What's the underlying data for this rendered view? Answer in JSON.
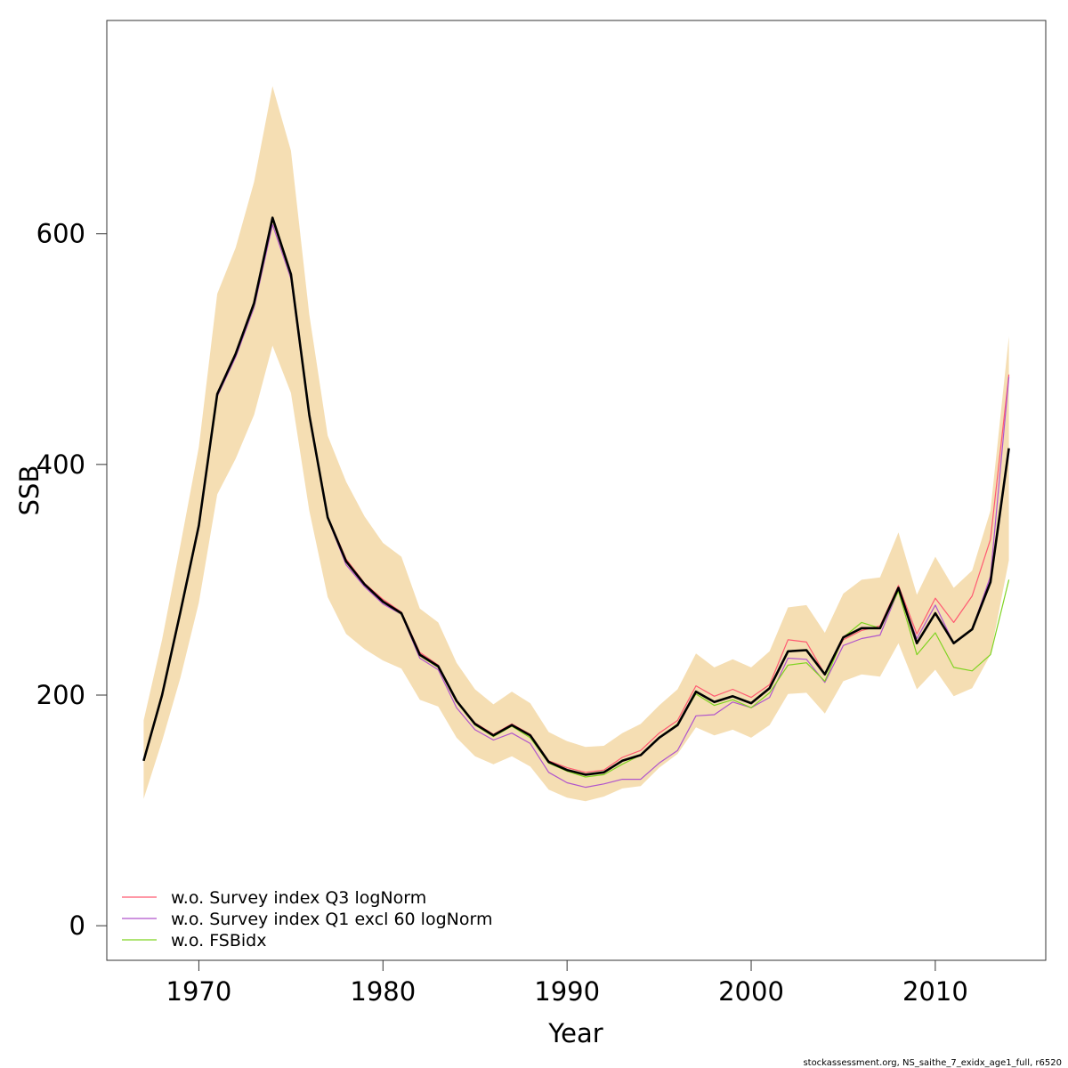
{
  "chart_data": {
    "type": "line",
    "title": "",
    "xlabel": "Year",
    "ylabel": "SSB",
    "xlim": [
      1965,
      2016
    ],
    "ylim": [
      -30,
      785
    ],
    "x_ticks": [
      1970,
      1980,
      1990,
      2000,
      2010
    ],
    "y_ticks": [
      0,
      200,
      400,
      600
    ],
    "grid": false,
    "legend_position": "bottom-left",
    "x": [
      1967,
      1968,
      1969,
      1970,
      1971,
      1972,
      1973,
      1974,
      1975,
      1976,
      1977,
      1978,
      1979,
      1980,
      1981,
      1982,
      1983,
      1984,
      1985,
      1986,
      1987,
      1988,
      1989,
      1990,
      1991,
      1992,
      1993,
      1994,
      1995,
      1996,
      1997,
      1998,
      1999,
      2000,
      2001,
      2002,
      2003,
      2004,
      2005,
      2006,
      2007,
      2008,
      2009,
      2010,
      2011,
      2012,
      2013,
      2014
    ],
    "band": {
      "color": "#f5deb3",
      "upper": [
        178,
        248,
        330,
        415,
        548,
        588,
        645,
        728,
        672,
        530,
        425,
        385,
        355,
        332,
        320,
        275,
        263,
        228,
        205,
        192,
        203,
        193,
        168,
        160,
        155,
        156,
        167,
        175,
        191,
        205,
        236,
        224,
        231,
        224,
        238,
        276,
        278,
        254,
        288,
        300,
        302,
        341,
        287,
        320,
        293,
        308,
        360,
        511
      ],
      "lower": [
        110,
        160,
        215,
        280,
        374,
        405,
        443,
        503,
        462,
        360,
        285,
        253,
        240,
        230,
        223,
        196,
        190,
        163,
        147,
        140,
        147,
        138,
        118,
        111,
        108,
        112,
        119,
        121,
        137,
        149,
        172,
        165,
        170,
        163,
        174,
        201,
        202,
        184,
        212,
        218,
        216,
        245,
        205,
        222,
        199,
        206,
        235,
        317
      ]
    },
    "series": [
      {
        "name": "w.o. Survey index Q3 logNorm",
        "color": "#ff5a72",
        "width": 1.2,
        "values": [
          143,
          200,
          273,
          348,
          462,
          497,
          541,
          612,
          563,
          444,
          355,
          318,
          297,
          283,
          272,
          237,
          226,
          195,
          176,
          166,
          175,
          166,
          143,
          137,
          133,
          135,
          146,
          152,
          167,
          178,
          208,
          199,
          205,
          198,
          209,
          248,
          246,
          218,
          248,
          256,
          260,
          295,
          253,
          284,
          263,
          286,
          335,
          478
        ]
      },
      {
        "name": "w.o. Survey index Q1 excl 60 logNorm",
        "color": "#b054cc",
        "width": 1.2,
        "values": [
          143,
          200,
          271,
          345,
          459,
          493,
          536,
          608,
          561,
          441,
          353,
          313,
          294,
          279,
          270,
          232,
          222,
          189,
          170,
          161,
          167,
          158,
          133,
          124,
          120,
          123,
          127,
          127,
          141,
          152,
          182,
          183,
          194,
          189,
          198,
          232,
          231,
          211,
          243,
          249,
          252,
          291,
          249,
          278,
          245,
          257,
          303,
          476
        ]
      },
      {
        "name": "w.o. FSBidx",
        "color": "#7fd321",
        "width": 1.2,
        "values": [
          143,
          200,
          271,
          346,
          460,
          495,
          538,
          612,
          563,
          442,
          353,
          316,
          296,
          281,
          270,
          234,
          224,
          194,
          174,
          164,
          173,
          163,
          141,
          134,
          129,
          131,
          140,
          148,
          163,
          175,
          201,
          191,
          196,
          189,
          202,
          226,
          228,
          212,
          250,
          263,
          258,
          290,
          235,
          254,
          224,
          221,
          235,
          300
        ]
      },
      {
        "name": "",
        "color": "#000000",
        "width": 2.6,
        "values": [
          143,
          200,
          272,
          347,
          461,
          496,
          540,
          614,
          565,
          443,
          354,
          316,
          296,
          281,
          271,
          235,
          225,
          195,
          175,
          165,
          174,
          165,
          142,
          135,
          131,
          133,
          143,
          148,
          163,
          174,
          203,
          194,
          199,
          193,
          206,
          238,
          239,
          218,
          250,
          258,
          258,
          293,
          245,
          271,
          245,
          257,
          298,
          414
        ]
      }
    ]
  },
  "legend": {
    "items": [
      {
        "label": "w.o. Survey index Q3 logNorm",
        "color": "#ff5a72"
      },
      {
        "label": "w.o. Survey index Q1 excl 60 logNorm",
        "color": "#b054cc"
      },
      {
        "label": "w.o. FSBidx",
        "color": "#7fd321"
      }
    ]
  },
  "footer": {
    "source_text": "stockassessment.org, NS_saithe_7_exidx_age1_full, r6520"
  }
}
